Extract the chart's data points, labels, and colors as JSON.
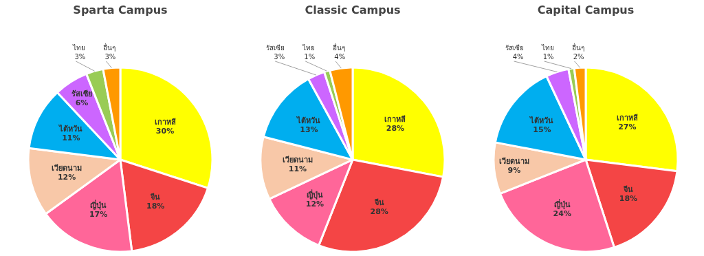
{
  "chart_data": [
    {
      "type": "pie",
      "title": "Sparta Campus",
      "categories": [
        "เกาหลี",
        "จีน",
        "ญี่ปุ่น",
        "เวียดนาม",
        "ไต้หวัน",
        "รัสเซีย",
        "ไทย",
        "อื่นๆ"
      ],
      "values": [
        30,
        18,
        17,
        12,
        11,
        6,
        3,
        3
      ],
      "value_labels": [
        "30%",
        "18%",
        "17%",
        "12%",
        "11%",
        "6%",
        "3%",
        "3%"
      ],
      "colors": [
        "#ffff00",
        "#f44545",
        "#ff6699",
        "#f8c8a8",
        "#00aeef",
        "#cc66ff",
        "#99cc55",
        "#ff9900"
      ]
    },
    {
      "type": "pie",
      "title": "Classic Campus",
      "categories": [
        "เกาหลี",
        "จีน",
        "ญี่ปุ่น",
        "เวียดนาม",
        "ไต้หวัน",
        "รัสเซีย",
        "ไทย",
        "อื่นๆ"
      ],
      "values": [
        28,
        28,
        12,
        11,
        13,
        3,
        1,
        4
      ],
      "value_labels": [
        "28%",
        "28%",
        "12%",
        "11%",
        "13%",
        "3%",
        "1%",
        "4%"
      ],
      "colors": [
        "#ffff00",
        "#f44545",
        "#ff6699",
        "#f8c8a8",
        "#00aeef",
        "#cc66ff",
        "#99cc55",
        "#ff9900"
      ]
    },
    {
      "type": "pie",
      "title": "Capital Campus",
      "categories": [
        "เกาหลี",
        "จีน",
        "ญี่ปุ่น",
        "เวียดนาม",
        "ไต้หวัน",
        "รัสเซีย",
        "ไทย",
        "อื่นๆ"
      ],
      "values": [
        27,
        18,
        24,
        9,
        15,
        4,
        1,
        2
      ],
      "value_labels": [
        "27%",
        "18%",
        "24%",
        "9%",
        "15%",
        "4%",
        "1%",
        "2%"
      ],
      "colors": [
        "#ffff00",
        "#f44545",
        "#ff6699",
        "#f8c8a8",
        "#00aeef",
        "#cc66ff",
        "#99cc55",
        "#ff9900"
      ]
    }
  ]
}
